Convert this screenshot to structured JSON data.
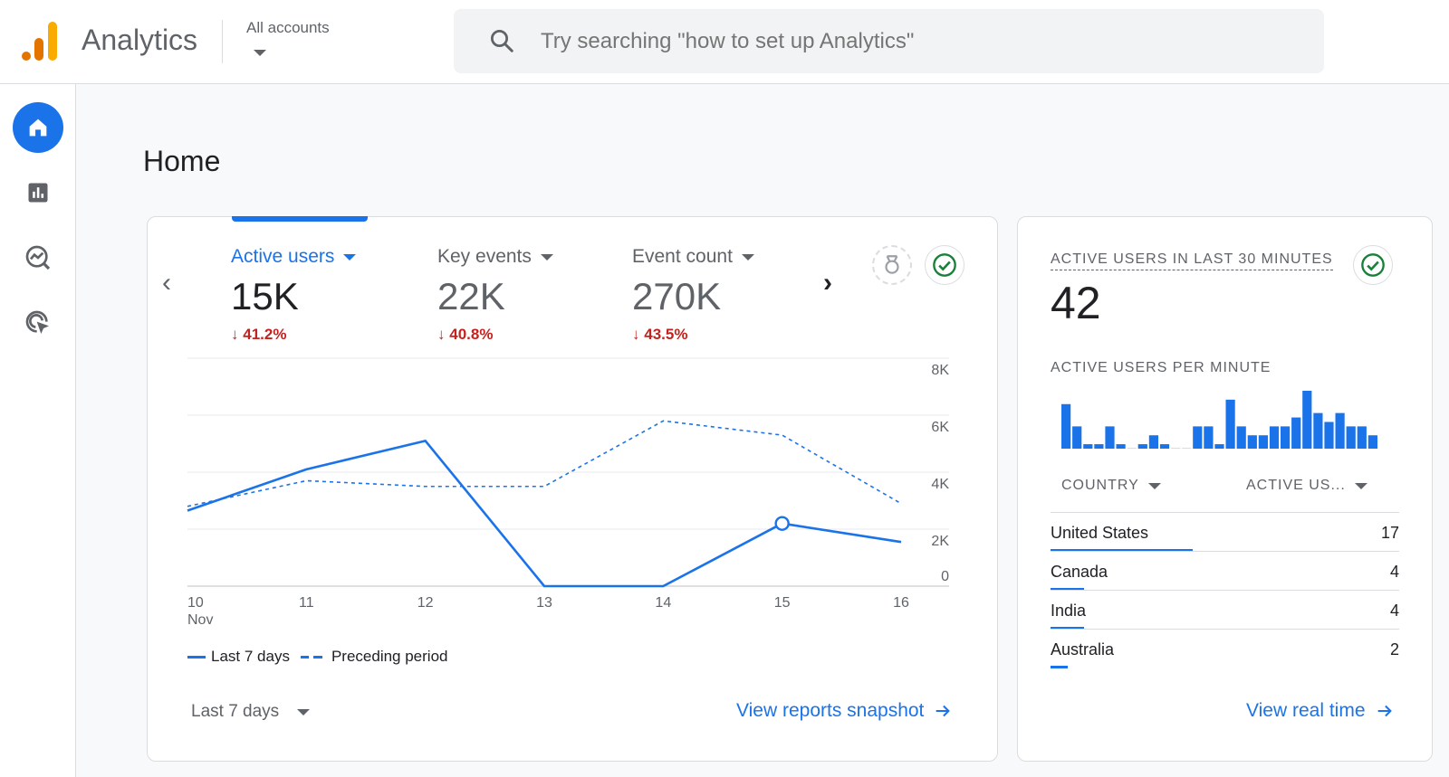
{
  "header": {
    "app_title": "Analytics",
    "account_label": "All accounts",
    "search_placeholder": "Try searching \"how to set up Analytics\""
  },
  "nav": [
    "home-icon",
    "reports-icon",
    "explore-icon",
    "advertising-icon"
  ],
  "page_title": "Home",
  "overview": {
    "metrics": [
      {
        "label": "Active users",
        "value": "15K",
        "change": "41.2%",
        "selected": true
      },
      {
        "label": "Key events",
        "value": "22K",
        "change": "40.8%",
        "selected": false
      },
      {
        "label": "Event count",
        "value": "270K",
        "change": "43.5%",
        "selected": false
      }
    ],
    "date_range_label": "Last 7 days",
    "link_label": "View reports snapshot"
  },
  "chart_data": {
    "type": "line",
    "x": [
      "10",
      "11",
      "12",
      "13",
      "14",
      "15",
      "16"
    ],
    "x_sublabel": "Nov",
    "yticks": [
      "8K",
      "6K",
      "4K",
      "2K",
      "0"
    ],
    "ylim": [
      0,
      8000
    ],
    "series": [
      {
        "name": "Last 7 days",
        "style": "solid",
        "values": [
          2650,
          4100,
          5100,
          0,
          0,
          2200,
          1550
        ]
      },
      {
        "name": "Preceding period",
        "style": "dashed",
        "values": [
          2800,
          3700,
          3500,
          3500,
          5800,
          5300,
          2900
        ]
      }
    ],
    "highlight_index": 5,
    "legend_position": "bottom-left",
    "color": "#1a73e8"
  },
  "realtime": {
    "title": "ACTIVE USERS IN LAST 30 MINUTES",
    "value": "42",
    "per_minute_title": "ACTIVE USERS PER MINUTE",
    "per_minute": [
      10,
      5,
      1,
      1,
      5,
      1,
      0,
      1,
      3,
      1,
      0,
      0,
      5,
      5,
      1,
      11,
      5,
      3,
      3,
      5,
      5,
      7,
      13,
      8,
      6,
      8,
      5,
      5,
      3
    ],
    "col_country": "COUNTRY",
    "col_users": "ACTIVE US...",
    "rows": [
      {
        "country": "United States",
        "count": "17"
      },
      {
        "country": "Canada",
        "count": "4"
      },
      {
        "country": "India",
        "count": "4"
      },
      {
        "country": "Australia",
        "count": "2"
      }
    ],
    "link_label": "View real time"
  }
}
